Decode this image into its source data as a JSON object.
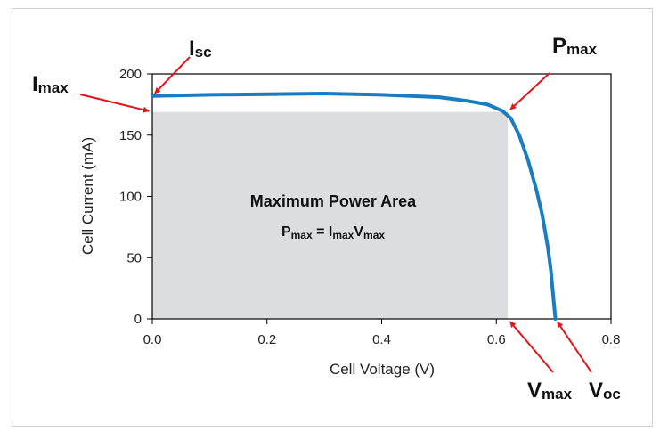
{
  "chart_data": {
    "type": "line",
    "title": "",
    "xlabel": "Cell Voltage (V)",
    "ylabel": "Cell Current (mA)",
    "xlim": [
      0.0,
      0.8
    ],
    "ylim": [
      0,
      200
    ],
    "x_ticks": [
      "0.0",
      "0.2",
      "0.4",
      "0.6",
      "0.8"
    ],
    "y_ticks": [
      "0",
      "50",
      "100",
      "150",
      "200"
    ],
    "grid": false,
    "series": [
      {
        "color": "#1a7cc1",
        "x": [
          0.0,
          0.1,
          0.2,
          0.3,
          0.4,
          0.5,
          0.55,
          0.585,
          0.61,
          0.625,
          0.64,
          0.655,
          0.67,
          0.68,
          0.69,
          0.695,
          0.7,
          0.703
        ],
        "y": [
          182,
          183,
          183.5,
          184,
          183,
          181,
          178,
          175,
          170,
          164,
          150,
          130,
          105,
          85,
          58,
          40,
          15,
          0
        ]
      }
    ],
    "shaded_region": {
      "label": "Maximum Power Area",
      "x": [
        0.0,
        0.62
      ],
      "y": [
        0,
        169
      ]
    },
    "region_formula": {
      "p": "P",
      "p_sub": "max",
      "eq": " = ",
      "i": "I",
      "i_sub": "max",
      "v": "V",
      "v_sub": "max"
    },
    "callouts": [
      {
        "id": "isc",
        "main": "I",
        "sub": "sc",
        "target_x": 0.0,
        "target_y": 182
      },
      {
        "id": "imax",
        "main": "I",
        "sub": "max",
        "target_x": 0.0,
        "target_y": 169
      },
      {
        "id": "pmax",
        "main": "P",
        "sub": "max",
        "target_x": 0.62,
        "target_y": 169
      },
      {
        "id": "vmax",
        "main": "V",
        "sub": "max",
        "target_x": 0.62,
        "target_y": 0
      },
      {
        "id": "voc",
        "main": "V",
        "sub": "oc",
        "target_x": 0.703,
        "target_y": 0
      }
    ],
    "colors": {
      "curve": "#1a7cc1",
      "area": "#dcdddf",
      "arrow": "#e4141b"
    }
  }
}
